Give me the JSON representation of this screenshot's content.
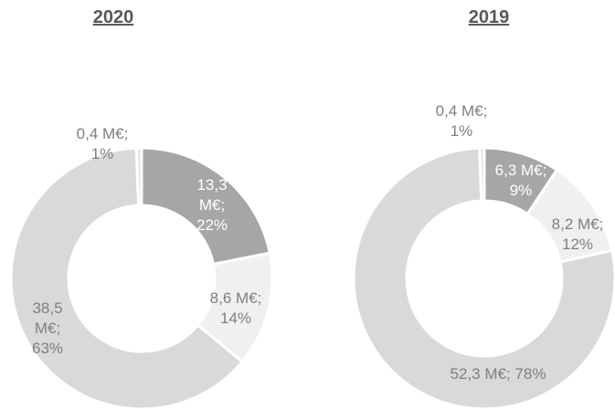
{
  "chart_data": [
    {
      "type": "donut",
      "title": "2020",
      "categories": [
        null,
        null,
        null,
        null
      ],
      "values": [
        13.3,
        8.6,
        38.5,
        0.4
      ],
      "value_labels": [
        "13,3 M€; 22%",
        "8,6 M€; 14%",
        "38,5 M€; 63%",
        "0,4 M€; 1%"
      ],
      "colors": [
        "#a6a6a6",
        "#f0f0f0",
        "#d9d9d9",
        "#e4e4e4"
      ]
    },
    {
      "type": "donut",
      "title": "2019",
      "categories": [
        null,
        null,
        null,
        null
      ],
      "values": [
        6.3,
        8.2,
        52.3,
        0.4
      ],
      "value_labels": [
        "6,3 M€; 9%",
        "8,2 M€; 12%",
        "52,3 M€; 78%",
        "0,4 M€; 1%"
      ],
      "colors": [
        "#a6a6a6",
        "#f0f0f0",
        "#d9d9d9",
        "#e4e4e4"
      ]
    }
  ]
}
